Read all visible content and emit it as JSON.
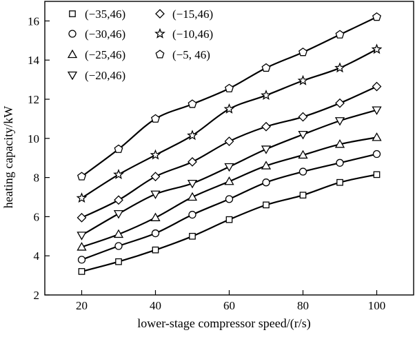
{
  "chart_data": {
    "type": "line",
    "xlabel": "lower-stage compressor speed/(r/s)",
    "ylabel": "heating capacity/kW",
    "xlim": [
      10,
      110
    ],
    "ylim": [
      2,
      17
    ],
    "x_ticks": [
      20,
      40,
      60,
      80,
      100
    ],
    "y_ticks": [
      2,
      4,
      6,
      8,
      10,
      12,
      14,
      16
    ],
    "x": [
      20,
      30,
      40,
      50,
      60,
      70,
      80,
      90,
      100
    ],
    "grid": false,
    "legend_position": "top-left",
    "series": [
      {
        "name": "(−35,46)",
        "marker": "square",
        "values": [
          3.2,
          3.7,
          4.3,
          5.0,
          5.85,
          6.6,
          7.1,
          7.75,
          8.15
        ]
      },
      {
        "name": "(−30,46)",
        "marker": "circle",
        "values": [
          3.8,
          4.5,
          5.15,
          6.1,
          6.9,
          7.75,
          8.3,
          8.75,
          9.2
        ]
      },
      {
        "name": "(−25,46)",
        "marker": "triangle-up",
        "values": [
          4.45,
          5.1,
          5.95,
          7.0,
          7.8,
          8.6,
          9.15,
          9.7,
          10.05
        ]
      },
      {
        "name": "(−20,46)",
        "marker": "triangle-down",
        "values": [
          5.05,
          6.15,
          7.15,
          7.7,
          8.55,
          9.45,
          10.2,
          10.9,
          11.45
        ]
      },
      {
        "name": "(−15,46)",
        "marker": "diamond",
        "values": [
          5.95,
          6.85,
          8.05,
          8.8,
          9.85,
          10.6,
          11.1,
          11.8,
          12.65
        ]
      },
      {
        "name": "(−10,46)",
        "marker": "star",
        "values": [
          6.95,
          8.15,
          9.15,
          10.15,
          11.5,
          12.2,
          12.95,
          13.6,
          14.55
        ]
      },
      {
        "name": "(−5, 46)",
        "marker": "pentagon",
        "values": [
          8.05,
          9.45,
          11.0,
          11.75,
          12.55,
          13.6,
          14.4,
          15.3,
          16.2
        ]
      }
    ]
  }
}
